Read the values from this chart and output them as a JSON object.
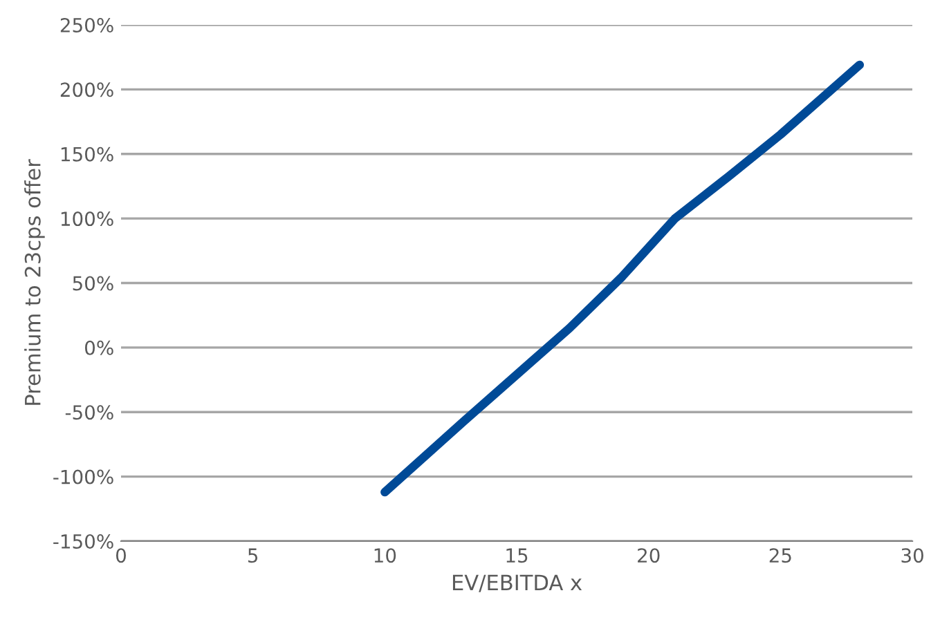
{
  "chart_data": {
    "type": "line",
    "xlabel": "EV/EBITDA x",
    "ylabel": "Premium to 23cps offer",
    "series": [
      {
        "color": "#004a97",
        "x": [
          10,
          13,
          17,
          19,
          21,
          23,
          25,
          28
        ],
        "values": [
          -112,
          -57,
          15,
          55,
          100,
          132,
          165,
          219
        ]
      }
    ],
    "xlim": [
      0,
      30
    ],
    "xticks": [
      0,
      5,
      10,
      15,
      20,
      25,
      30
    ],
    "ylim": [
      -150,
      250
    ],
    "yticks": [
      {
        "value": -150,
        "label": "-150%"
      },
      {
        "value": -100,
        "label": "-100%"
      },
      {
        "value": -50,
        "label": "-50%"
      },
      {
        "value": 0,
        "label": "0%"
      },
      {
        "value": 50,
        "label": "50%"
      },
      {
        "value": 100,
        "label": "100%"
      },
      {
        "value": 150,
        "label": "150%"
      },
      {
        "value": 200,
        "label": "200%"
      },
      {
        "value": 250,
        "label": "250%"
      }
    ],
    "grid": "y",
    "marker": "none",
    "line_style": "solid"
  }
}
